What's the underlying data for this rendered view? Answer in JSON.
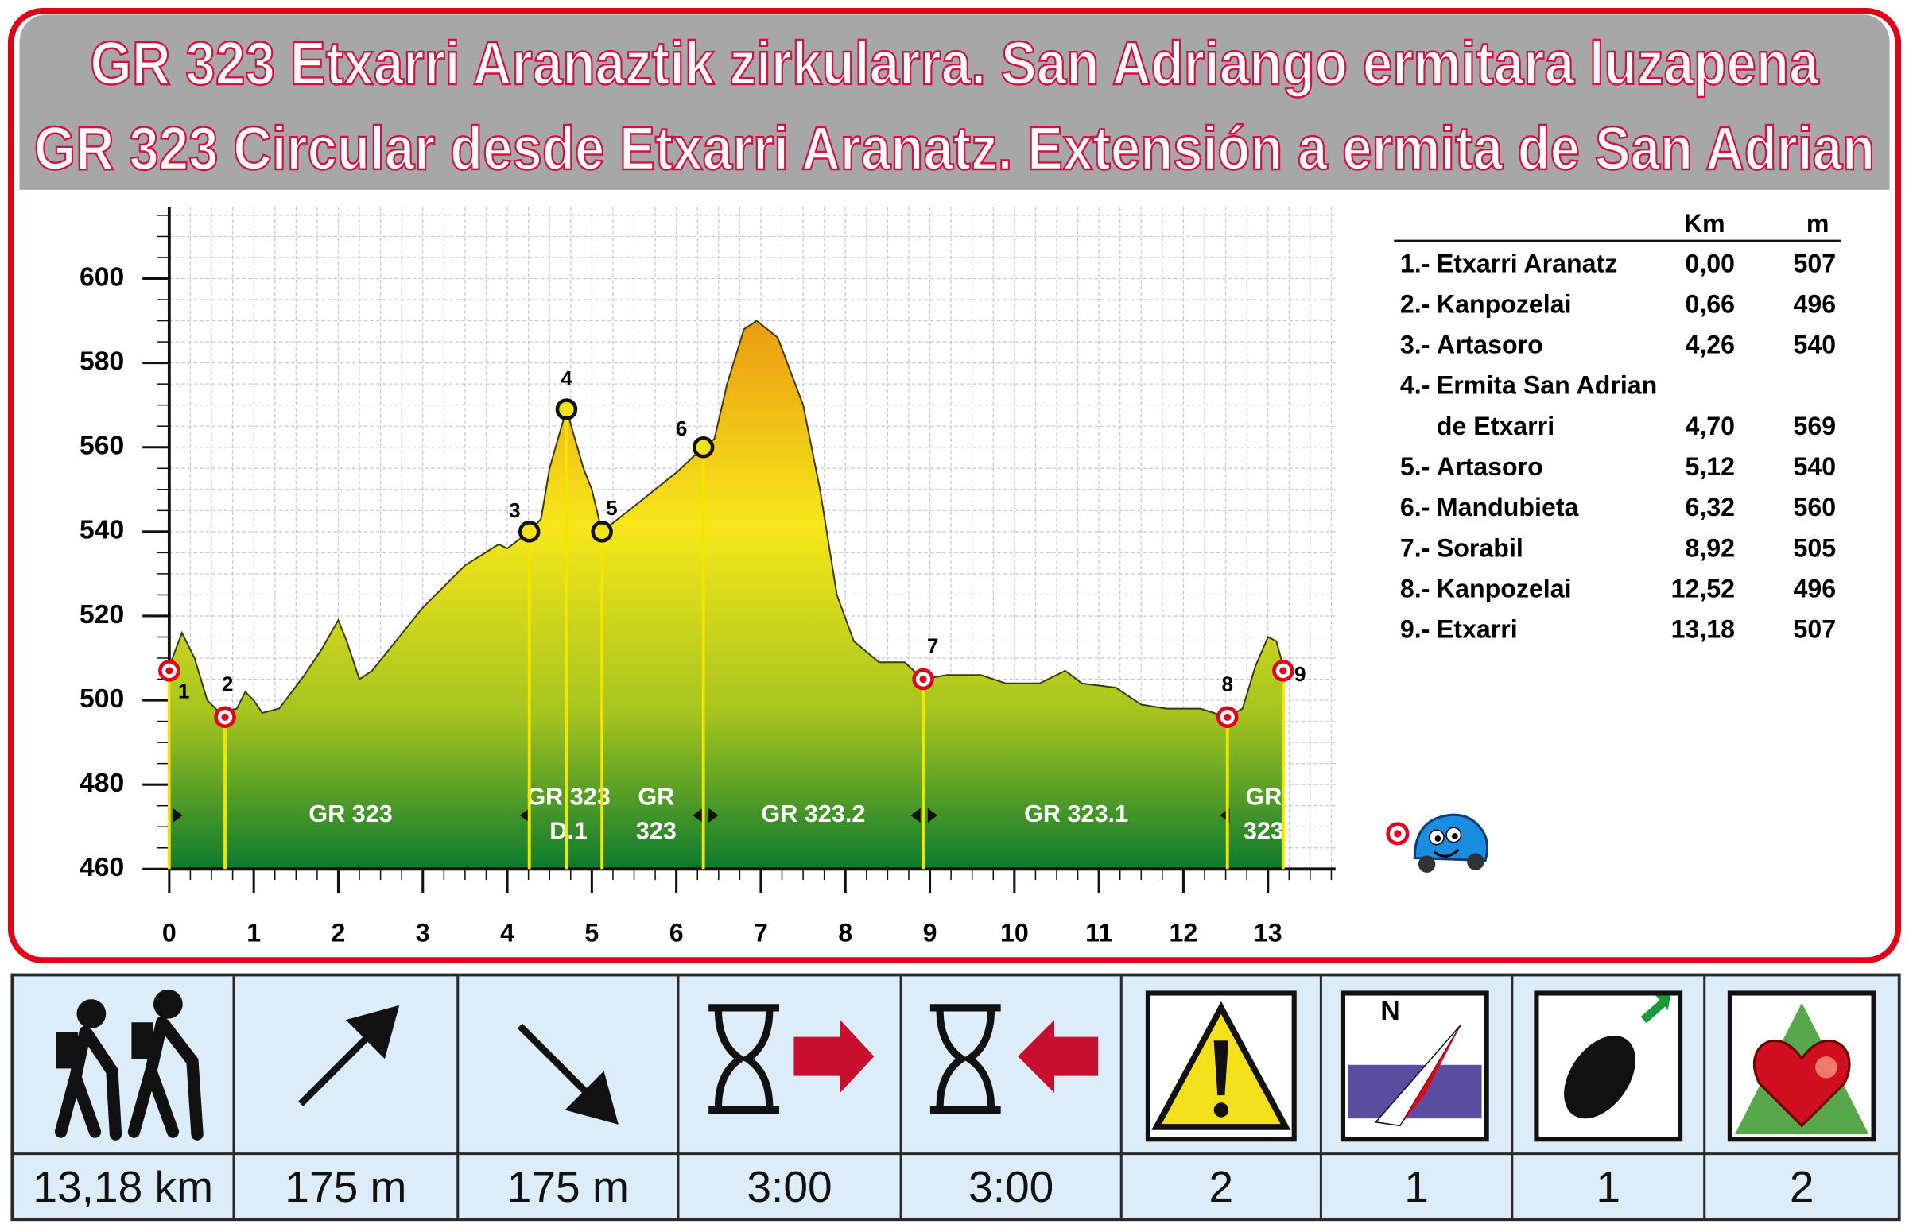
{
  "header": {
    "title_eu": "GR 323 Etxarri Aranaztik zirkularra. San Adriango ermitara luzapena",
    "title_es": "GR 323 Circular desde Etxarri Aranatz. Extensión a ermita de San Adrian"
  },
  "chart_data": {
    "type": "area",
    "x": [
      0,
      0.15,
      0.3,
      0.45,
      0.6,
      0.8,
      0.9,
      1.0,
      1.1,
      1.3,
      1.45,
      1.6,
      1.8,
      2.0,
      2.1,
      2.25,
      2.4,
      2.6,
      3.0,
      3.5,
      3.9,
      4.0,
      4.26,
      4.4,
      4.5,
      4.6,
      4.7,
      4.8,
      4.9,
      5.0,
      5.12,
      5.5,
      6.0,
      6.32,
      6.45,
      6.6,
      6.8,
      6.95,
      7.2,
      7.5,
      7.7,
      7.9,
      8.1,
      8.4,
      8.7,
      8.92,
      9.2,
      9.6,
      9.9,
      10.3,
      10.6,
      10.8,
      11.2,
      11.5,
      11.8,
      12.2,
      12.52,
      12.7,
      12.85,
      13.0,
      13.1,
      13.18
    ],
    "values": [
      508,
      516,
      510,
      500,
      497,
      498,
      502,
      500,
      497,
      498,
      502,
      506,
      512,
      519,
      514,
      505,
      507,
      512,
      522,
      532,
      537,
      536,
      540,
      543,
      555,
      562,
      569,
      562,
      555,
      550,
      540,
      546,
      554,
      560,
      562,
      575,
      588,
      590,
      586,
      570,
      550,
      525,
      514,
      509,
      509,
      505,
      506,
      506,
      504,
      504,
      507,
      504,
      503,
      499,
      498,
      498,
      496,
      498,
      508,
      515,
      514,
      508
    ],
    "xlim": [
      0,
      13.8
    ],
    "ylim": [
      460,
      617
    ],
    "xticks": [
      0,
      1,
      2,
      3,
      4,
      5,
      6,
      7,
      8,
      9,
      10,
      11,
      12,
      13
    ],
    "yticks": [
      460,
      480,
      500,
      520,
      540,
      560,
      580,
      600
    ],
    "grid": true,
    "waypoints": {
      "labels": [
        "1",
        "2",
        "3",
        "4",
        "5",
        "6",
        "7",
        "8",
        "9"
      ],
      "x": [
        0,
        0.66,
        4.26,
        4.7,
        5.12,
        6.32,
        8.92,
        12.52,
        13.18
      ],
      "y": [
        507,
        496,
        540,
        569,
        540,
        560,
        505,
        496,
        507
      ],
      "colors": [
        "#e3001b",
        "#e3001b",
        "#f5e11b",
        "#f5e11b",
        "#f5e11b",
        "#f5e11b",
        "#e3001b",
        "#e3001b",
        "#e3001b"
      ]
    },
    "segments": [
      [
        "GR 323"
      ],
      [
        "GR 323",
        "D.1"
      ],
      [
        "GR",
        "323"
      ],
      [
        "GR 323.2"
      ],
      [
        "GR 323.1"
      ],
      [
        "GR",
        "323"
      ]
    ]
  },
  "table": {
    "header": [
      "Km",
      "m"
    ],
    "rows": [
      {
        "n": "1.-",
        "name": [
          "Etxarri Aranatz"
        ],
        "km": "0,00",
        "m": "507"
      },
      {
        "n": "2.-",
        "name": [
          "Kanpozelai"
        ],
        "km": "0,66",
        "m": "496"
      },
      {
        "n": "3.-",
        "name": [
          "Artasoro"
        ],
        "km": "4,26",
        "m": "540"
      },
      {
        "n": "4.-",
        "name": [
          "Ermita San Adrian",
          "de Etxarri"
        ],
        "km": "4,70",
        "m": "569"
      },
      {
        "n": "5.-",
        "name": [
          "Artasoro"
        ],
        "km": "5,12",
        "m": "540"
      },
      {
        "n": "6.-",
        "name": [
          "Mandubieta"
        ],
        "km": "6,32",
        "m": "560"
      },
      {
        "n": "7.-",
        "name": [
          "Sorabil"
        ],
        "km": "8,92",
        "m": "505"
      },
      {
        "n": "8.-",
        "name": [
          "Kanpozelai"
        ],
        "km": "12,52",
        "m": "496"
      },
      {
        "n": "9.-",
        "name": [
          "Etxarri"
        ],
        "km": "13,18",
        "m": "507"
      }
    ]
  },
  "stats": [
    "13,18 km",
    "175 m",
    "175 m",
    "3:00",
    "3:00",
    "2",
    "1",
    "1",
    "2"
  ]
}
